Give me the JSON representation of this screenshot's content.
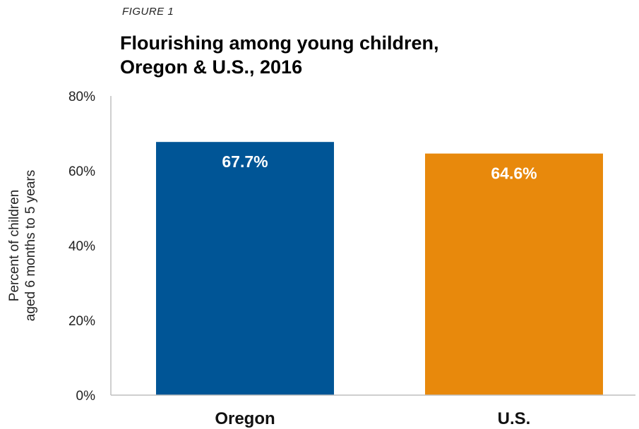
{
  "figure_label": "FIGURE 1",
  "title_lines": [
    "Flourishing among young children,",
    "Oregon & U.S., 2016"
  ],
  "colors": {
    "oregon": "#005596",
    "us": "#E8890C",
    "axis": "#bfbfbf"
  },
  "chart_data": {
    "type": "bar",
    "title": "Flourishing among young children, Oregon & U.S., 2016",
    "categories": [
      "Oregon",
      "U.S."
    ],
    "values": [
      67.7,
      64.6
    ],
    "data_labels": [
      "67.7%",
      "64.6%"
    ],
    "ylabel_lines": [
      "Percent of children",
      "aged 6 months to 5 years"
    ],
    "xlabel": "",
    "ylim": [
      0,
      80
    ],
    "yticks": [
      0,
      20,
      40,
      60,
      80
    ],
    "ytick_labels": [
      "0%",
      "20%",
      "40%",
      "60%",
      "80%"
    ],
    "grid": false,
    "legend": "none"
  }
}
